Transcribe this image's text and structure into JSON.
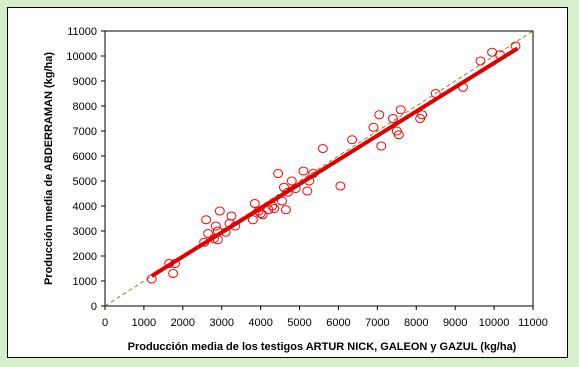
{
  "chart_data": {
    "type": "scatter",
    "xlabel": "Producción media de los testigos ARTUR NICK, GALEON y GAZUL (kg/ha)",
    "ylabel": "Producción media de ABDERRAMAN (kg/ha)",
    "xlim": [
      0,
      11000
    ],
    "ylim": [
      0,
      11000
    ],
    "x_ticks": [
      0,
      1000,
      2000,
      3000,
      4000,
      5000,
      6000,
      7000,
      8000,
      9000,
      10000,
      11000
    ],
    "y_ticks": [
      0,
      1000,
      2000,
      3000,
      4000,
      5000,
      6000,
      7000,
      8000,
      9000,
      10000,
      11000
    ],
    "grid": false,
    "points": [
      [
        1200,
        1080
      ],
      [
        1650,
        1700
      ],
      [
        1750,
        1300
      ],
      [
        1800,
        1700
      ],
      [
        2550,
        2550
      ],
      [
        2600,
        3450
      ],
      [
        2650,
        2900
      ],
      [
        2800,
        2700
      ],
      [
        2850,
        3200
      ],
      [
        2900,
        3000
      ],
      [
        2900,
        2650
      ],
      [
        2950,
        3800
      ],
      [
        3100,
        2950
      ],
      [
        3200,
        3300
      ],
      [
        3250,
        3600
      ],
      [
        3350,
        3200
      ],
      [
        3800,
        3450
      ],
      [
        3850,
        4100
      ],
      [
        3950,
        3800
      ],
      [
        4000,
        3700
      ],
      [
        4050,
        3650
      ],
      [
        4200,
        3850
      ],
      [
        4300,
        4000
      ],
      [
        4350,
        3900
      ],
      [
        4450,
        5300
      ],
      [
        4550,
        4200
      ],
      [
        4600,
        4750
      ],
      [
        4650,
        3850
      ],
      [
        4700,
        4550
      ],
      [
        4800,
        5000
      ],
      [
        4900,
        4700
      ],
      [
        5100,
        5400
      ],
      [
        5200,
        4600
      ],
      [
        5250,
        5000
      ],
      [
        5350,
        5300
      ],
      [
        5600,
        6300
      ],
      [
        6050,
        4800
      ],
      [
        6350,
        6650
      ],
      [
        6900,
        7150
      ],
      [
        7050,
        7650
      ],
      [
        7100,
        6400
      ],
      [
        7400,
        7500
      ],
      [
        7500,
        7000
      ],
      [
        7550,
        6850
      ],
      [
        7600,
        7850
      ],
      [
        8100,
        7500
      ],
      [
        8150,
        7650
      ],
      [
        8500,
        8500
      ],
      [
        9200,
        8750
      ],
      [
        9650,
        9800
      ],
      [
        9950,
        10150
      ],
      [
        10150,
        10050
      ],
      [
        10550,
        10400
      ]
    ],
    "regression_line": {
      "x": [
        1200,
        10600
      ],
      "y": [
        1200,
        10300
      ]
    },
    "reference_line": {
      "x": [
        0,
        11000
      ],
      "y": [
        0,
        11000
      ]
    },
    "colors": {
      "points": "#ff0000",
      "regression": "#e00000",
      "reference": "#7a8a3a",
      "background": "#d6efcb"
    }
  }
}
